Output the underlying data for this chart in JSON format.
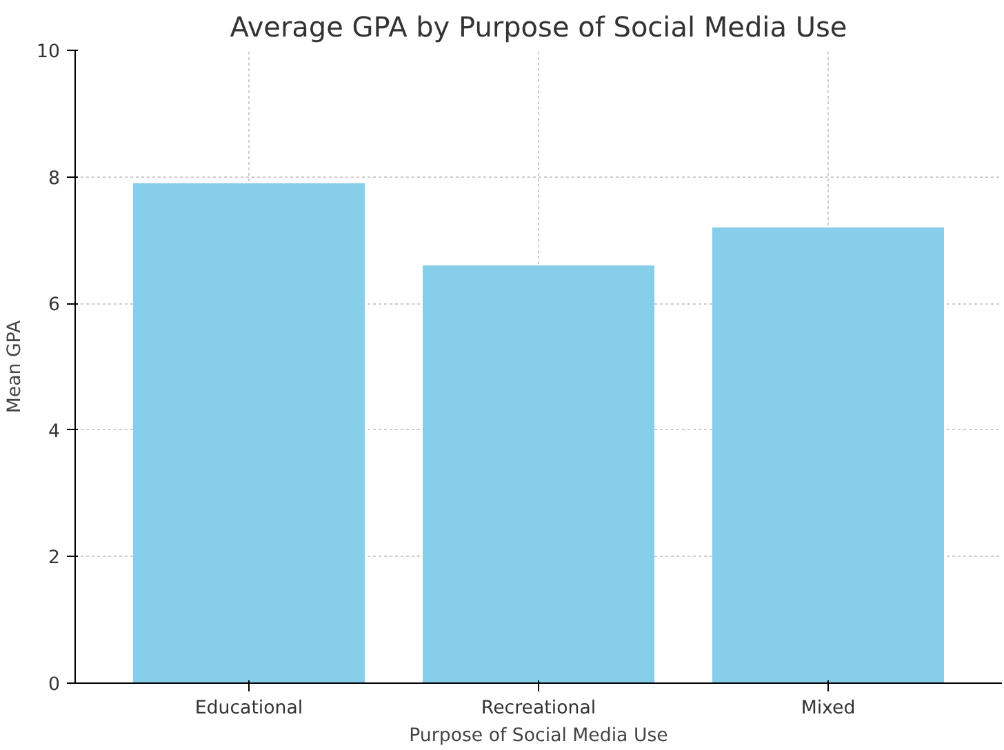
{
  "chart_data": {
    "type": "bar",
    "title": "Average GPA by Purpose of Social Media Use",
    "xlabel": "Purpose of Social Media Use",
    "ylabel": "Mean GPA",
    "categories": [
      "Educational",
      "Recreational",
      "Mixed"
    ],
    "values": [
      7.9,
      6.6,
      7.2
    ],
    "color": "#87ceeb",
    "ylim": [
      0,
      10
    ],
    "yticks": [
      0,
      2,
      4,
      6,
      8,
      10
    ],
    "grid": true
  }
}
